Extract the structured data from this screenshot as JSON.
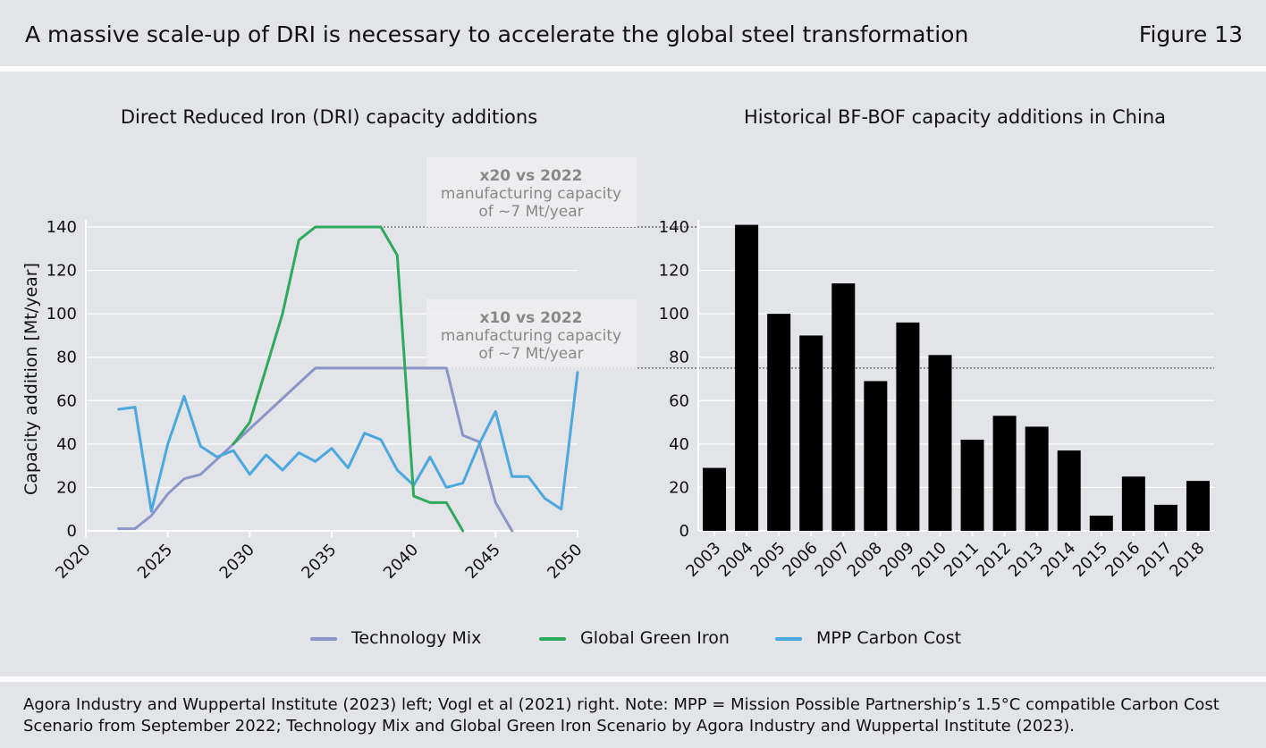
{
  "header": {
    "title": "A massive scale-up of DRI is necessary to accelerate the global steel transformation",
    "figure_label": "Figure 13"
  },
  "footer": {
    "source_text": "Agora Industry and Wuppertal Institute (2023) left; Vogl et al (2021) right. Note: MPP = Mission Possible Partnership’s 1.5°C compatible Carbon Cost Scenario from September 2022; Technology Mix and Global Green Iron Scenario by Agora Industry and Wuppertal Institute (2023)."
  },
  "colors": {
    "technology_mix": "#8b95c9",
    "global_green_iron": "#2eaa5c",
    "mpp_carbon_cost": "#4aa8de",
    "bars": "#000000",
    "panel_bg": "#e3e4e8",
    "annotation_box": "#eeeef0"
  },
  "chart_data": [
    {
      "type": "line",
      "title": "Direct Reduced Iron (DRI) capacity additions",
      "xlabel": "",
      "ylabel": "Capacity addition [Mt/year]",
      "xlim": [
        2020,
        2050
      ],
      "ylim": [
        0,
        140
      ],
      "x_ticks": [
        "2020",
        "2025",
        "2030",
        "2035",
        "2040",
        "2045",
        "2050"
      ],
      "y_ticks": [
        "0",
        "20",
        "40",
        "60",
        "80",
        "100",
        "120",
        "140"
      ],
      "grid": true,
      "legend_position": "bottom",
      "series": [
        {
          "name": "Technology Mix",
          "color_key": "technology_mix",
          "x": [
            2022,
            2023,
            2024,
            2025,
            2026,
            2027,
            2028,
            2029,
            2030,
            2031,
            2032,
            2033,
            2034,
            2035,
            2036,
            2037,
            2038,
            2039,
            2040,
            2041,
            2042,
            2043,
            2044,
            2045,
            2046
          ],
          "y": [
            1,
            1,
            7,
            17,
            24,
            26,
            33,
            40,
            47,
            54,
            61,
            68,
            75,
            75,
            75,
            75,
            75,
            75,
            75,
            75,
            75,
            44,
            41,
            13,
            0
          ]
        },
        {
          "name": "Global Green Iron",
          "color_key": "global_green_iron",
          "x": [
            2029,
            2030,
            2031,
            2032,
            2033,
            2034,
            2035,
            2036,
            2037,
            2038,
            2039,
            2040,
            2041,
            2042,
            2043
          ],
          "y": [
            40,
            50,
            75,
            100,
            134,
            140,
            140,
            140,
            140,
            140,
            127,
            16,
            13,
            13,
            0
          ]
        },
        {
          "name": "MPP Carbon Cost",
          "color_key": "mpp_carbon_cost",
          "x": [
            2022,
            2023,
            2024,
            2025,
            2026,
            2027,
            2028,
            2029,
            2030,
            2031,
            2032,
            2033,
            2034,
            2035,
            2036,
            2037,
            2038,
            2039,
            2040,
            2041,
            2042,
            2043,
            2044,
            2045,
            2046,
            2047,
            2048,
            2049,
            2050
          ],
          "y": [
            56,
            57,
            9,
            40,
            62,
            39,
            34,
            37,
            26,
            35,
            28,
            36,
            32,
            38,
            29,
            45,
            42,
            28,
            21,
            34,
            20,
            22,
            40,
            55,
            25,
            25,
            15,
            10,
            73
          ]
        }
      ],
      "annotations": [
        {
          "headline": "x20 vs 2022",
          "line1": "manufacturing capacity",
          "line2": "of ~7 Mt/year",
          "ref_value": 140
        },
        {
          "headline": "x10 vs 2022",
          "line1": "manufacturing capacity",
          "line2": "of ~7 Mt/year",
          "ref_value": 75
        }
      ]
    },
    {
      "type": "bar",
      "title": "Historical BF-BOF capacity additions in China",
      "xlabel": "",
      "ylabel": "",
      "ylim": [
        0,
        140
      ],
      "y_ticks": [
        "0",
        "20",
        "40",
        "60",
        "80",
        "100",
        "120",
        "140"
      ],
      "categories": [
        "2003",
        "2004",
        "2005",
        "2006",
        "2007",
        "2008",
        "2009",
        "2010",
        "2011",
        "2012",
        "2013",
        "2014",
        "2015",
        "2016",
        "2017",
        "2018"
      ],
      "values": [
        29,
        141,
        100,
        90,
        114,
        69,
        96,
        81,
        42,
        53,
        48,
        37,
        7,
        25,
        12,
        23
      ],
      "color_key": "bars"
    }
  ],
  "legend": [
    {
      "label": "Technology Mix",
      "color_key": "technology_mix"
    },
    {
      "label": "Global Green Iron",
      "color_key": "global_green_iron"
    },
    {
      "label": "MPP Carbon Cost",
      "color_key": "mpp_carbon_cost"
    }
  ]
}
